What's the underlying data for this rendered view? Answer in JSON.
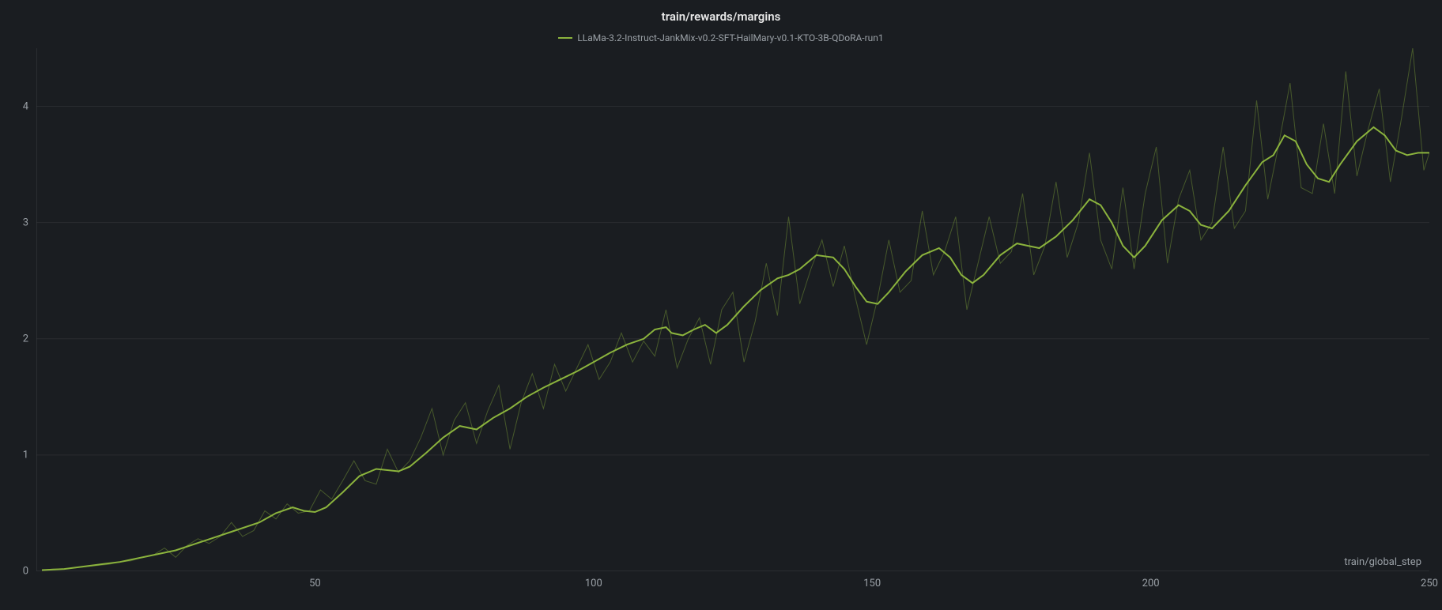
{
  "chart": {
    "type": "line",
    "title": "train/rewards/margins",
    "x_axis_label": "train/global_step",
    "background_color": "#1a1d21",
    "grid_color": "#2a2d31",
    "axis_line_color": "#3a3d41",
    "text_color": "#9aa0a6",
    "title_color": "#e8e8e8",
    "title_fontsize": 15,
    "label_fontsize": 13,
    "legend_fontsize": 12,
    "xlim": [
      0,
      250
    ],
    "ylim": [
      0,
      4.5
    ],
    "xticks": [
      50,
      100,
      150,
      200,
      250
    ],
    "yticks": [
      0,
      1,
      2,
      3,
      4
    ],
    "series": [
      {
        "name": "LLaMa-3.2-Instruct-JankMix-v0.2-SFT-HailMary-v0.1-KTO-3B-QDoRA-run1",
        "color": "#8bb33d",
        "raw_opacity": 0.4,
        "line_width_raw": 1,
        "line_width_smooth": 2,
        "raw_data": [
          [
            1,
            0.01
          ],
          [
            3,
            0.02
          ],
          [
            5,
            0.02
          ],
          [
            7,
            0.03
          ],
          [
            9,
            0.04
          ],
          [
            11,
            0.05
          ],
          [
            13,
            0.06
          ],
          [
            15,
            0.08
          ],
          [
            17,
            0.09
          ],
          [
            19,
            0.12
          ],
          [
            21,
            0.14
          ],
          [
            23,
            0.2
          ],
          [
            25,
            0.12
          ],
          [
            27,
            0.22
          ],
          [
            29,
            0.28
          ],
          [
            31,
            0.24
          ],
          [
            33,
            0.3
          ],
          [
            35,
            0.42
          ],
          [
            37,
            0.3
          ],
          [
            39,
            0.35
          ],
          [
            41,
            0.52
          ],
          [
            43,
            0.45
          ],
          [
            45,
            0.58
          ],
          [
            47,
            0.5
          ],
          [
            49,
            0.52
          ],
          [
            51,
            0.7
          ],
          [
            53,
            0.62
          ],
          [
            55,
            0.78
          ],
          [
            57,
            0.95
          ],
          [
            59,
            0.78
          ],
          [
            61,
            0.75
          ],
          [
            63,
            1.05
          ],
          [
            65,
            0.85
          ],
          [
            67,
            0.95
          ],
          [
            69,
            1.15
          ],
          [
            71,
            1.4
          ],
          [
            73,
            1.0
          ],
          [
            75,
            1.3
          ],
          [
            77,
            1.45
          ],
          [
            79,
            1.1
          ],
          [
            81,
            1.38
          ],
          [
            83,
            1.6
          ],
          [
            85,
            1.05
          ],
          [
            87,
            1.45
          ],
          [
            89,
            1.7
          ],
          [
            91,
            1.4
          ],
          [
            93,
            1.78
          ],
          [
            95,
            1.55
          ],
          [
            97,
            1.75
          ],
          [
            99,
            1.95
          ],
          [
            101,
            1.65
          ],
          [
            103,
            1.8
          ],
          [
            105,
            2.05
          ],
          [
            107,
            1.8
          ],
          [
            109,
            1.98
          ],
          [
            111,
            1.85
          ],
          [
            113,
            2.25
          ],
          [
            115,
            1.75
          ],
          [
            117,
            2.0
          ],
          [
            119,
            2.18
          ],
          [
            121,
            1.78
          ],
          [
            123,
            2.25
          ],
          [
            125,
            2.4
          ],
          [
            127,
            1.8
          ],
          [
            129,
            2.15
          ],
          [
            131,
            2.65
          ],
          [
            133,
            2.2
          ],
          [
            135,
            3.05
          ],
          [
            137,
            2.3
          ],
          [
            139,
            2.6
          ],
          [
            141,
            2.85
          ],
          [
            143,
            2.45
          ],
          [
            145,
            2.8
          ],
          [
            147,
            2.35
          ],
          [
            149,
            1.95
          ],
          [
            151,
            2.35
          ],
          [
            153,
            2.85
          ],
          [
            155,
            2.4
          ],
          [
            157,
            2.5
          ],
          [
            159,
            3.1
          ],
          [
            161,
            2.55
          ],
          [
            163,
            2.75
          ],
          [
            165,
            3.05
          ],
          [
            167,
            2.25
          ],
          [
            169,
            2.65
          ],
          [
            171,
            3.05
          ],
          [
            173,
            2.65
          ],
          [
            175,
            2.75
          ],
          [
            177,
            3.25
          ],
          [
            179,
            2.55
          ],
          [
            181,
            2.8
          ],
          [
            183,
            3.35
          ],
          [
            185,
            2.7
          ],
          [
            187,
            3.0
          ],
          [
            189,
            3.6
          ],
          [
            191,
            2.85
          ],
          [
            193,
            2.6
          ],
          [
            195,
            3.3
          ],
          [
            197,
            2.6
          ],
          [
            199,
            3.25
          ],
          [
            201,
            3.65
          ],
          [
            203,
            2.65
          ],
          [
            205,
            3.2
          ],
          [
            207,
            3.45
          ],
          [
            209,
            2.85
          ],
          [
            211,
            3.0
          ],
          [
            213,
            3.65
          ],
          [
            215,
            2.95
          ],
          [
            217,
            3.1
          ],
          [
            219,
            4.05
          ],
          [
            221,
            3.2
          ],
          [
            223,
            3.68
          ],
          [
            225,
            4.2
          ],
          [
            227,
            3.3
          ],
          [
            229,
            3.25
          ],
          [
            231,
            3.85
          ],
          [
            233,
            3.25
          ],
          [
            235,
            4.3
          ],
          [
            237,
            3.4
          ],
          [
            239,
            3.8
          ],
          [
            241,
            4.15
          ],
          [
            243,
            3.35
          ],
          [
            245,
            3.9
          ],
          [
            247,
            4.5
          ],
          [
            249,
            3.45
          ],
          [
            250,
            3.6
          ]
        ],
        "smooth_data": [
          [
            1,
            0.01
          ],
          [
            5,
            0.02
          ],
          [
            10,
            0.05
          ],
          [
            15,
            0.08
          ],
          [
            20,
            0.13
          ],
          [
            25,
            0.18
          ],
          [
            30,
            0.26
          ],
          [
            35,
            0.34
          ],
          [
            40,
            0.42
          ],
          [
            43,
            0.5
          ],
          [
            46,
            0.55
          ],
          [
            48,
            0.52
          ],
          [
            50,
            0.51
          ],
          [
            52,
            0.55
          ],
          [
            55,
            0.68
          ],
          [
            58,
            0.82
          ],
          [
            61,
            0.88
          ],
          [
            63,
            0.87
          ],
          [
            65,
            0.86
          ],
          [
            67,
            0.9
          ],
          [
            70,
            1.02
          ],
          [
            73,
            1.15
          ],
          [
            76,
            1.25
          ],
          [
            79,
            1.22
          ],
          [
            82,
            1.32
          ],
          [
            85,
            1.4
          ],
          [
            88,
            1.5
          ],
          [
            91,
            1.58
          ],
          [
            94,
            1.65
          ],
          [
            97,
            1.72
          ],
          [
            100,
            1.8
          ],
          [
            103,
            1.88
          ],
          [
            106,
            1.95
          ],
          [
            109,
            2.0
          ],
          [
            111,
            2.08
          ],
          [
            113,
            2.1
          ],
          [
            114,
            2.05
          ],
          [
            116,
            2.03
          ],
          [
            118,
            2.08
          ],
          [
            120,
            2.12
          ],
          [
            122,
            2.05
          ],
          [
            124,
            2.12
          ],
          [
            127,
            2.28
          ],
          [
            130,
            2.42
          ],
          [
            133,
            2.52
          ],
          [
            135,
            2.55
          ],
          [
            137,
            2.6
          ],
          [
            140,
            2.72
          ],
          [
            143,
            2.7
          ],
          [
            145,
            2.6
          ],
          [
            147,
            2.45
          ],
          [
            149,
            2.32
          ],
          [
            151,
            2.3
          ],
          [
            153,
            2.4
          ],
          [
            156,
            2.58
          ],
          [
            159,
            2.72
          ],
          [
            162,
            2.78
          ],
          [
            164,
            2.7
          ],
          [
            166,
            2.55
          ],
          [
            168,
            2.48
          ],
          [
            170,
            2.55
          ],
          [
            173,
            2.72
          ],
          [
            176,
            2.82
          ],
          [
            178,
            2.8
          ],
          [
            180,
            2.78
          ],
          [
            183,
            2.88
          ],
          [
            186,
            3.02
          ],
          [
            189,
            3.2
          ],
          [
            191,
            3.15
          ],
          [
            193,
            3.0
          ],
          [
            195,
            2.8
          ],
          [
            197,
            2.7
          ],
          [
            199,
            2.8
          ],
          [
            202,
            3.02
          ],
          [
            205,
            3.15
          ],
          [
            207,
            3.1
          ],
          [
            209,
            2.98
          ],
          [
            211,
            2.95
          ],
          [
            214,
            3.1
          ],
          [
            217,
            3.32
          ],
          [
            220,
            3.52
          ],
          [
            222,
            3.58
          ],
          [
            224,
            3.75
          ],
          [
            226,
            3.7
          ],
          [
            228,
            3.5
          ],
          [
            230,
            3.38
          ],
          [
            232,
            3.35
          ],
          [
            234,
            3.5
          ],
          [
            237,
            3.7
          ],
          [
            240,
            3.82
          ],
          [
            242,
            3.75
          ],
          [
            244,
            3.62
          ],
          [
            246,
            3.58
          ],
          [
            248,
            3.6
          ],
          [
            250,
            3.6
          ]
        ]
      }
    ]
  }
}
